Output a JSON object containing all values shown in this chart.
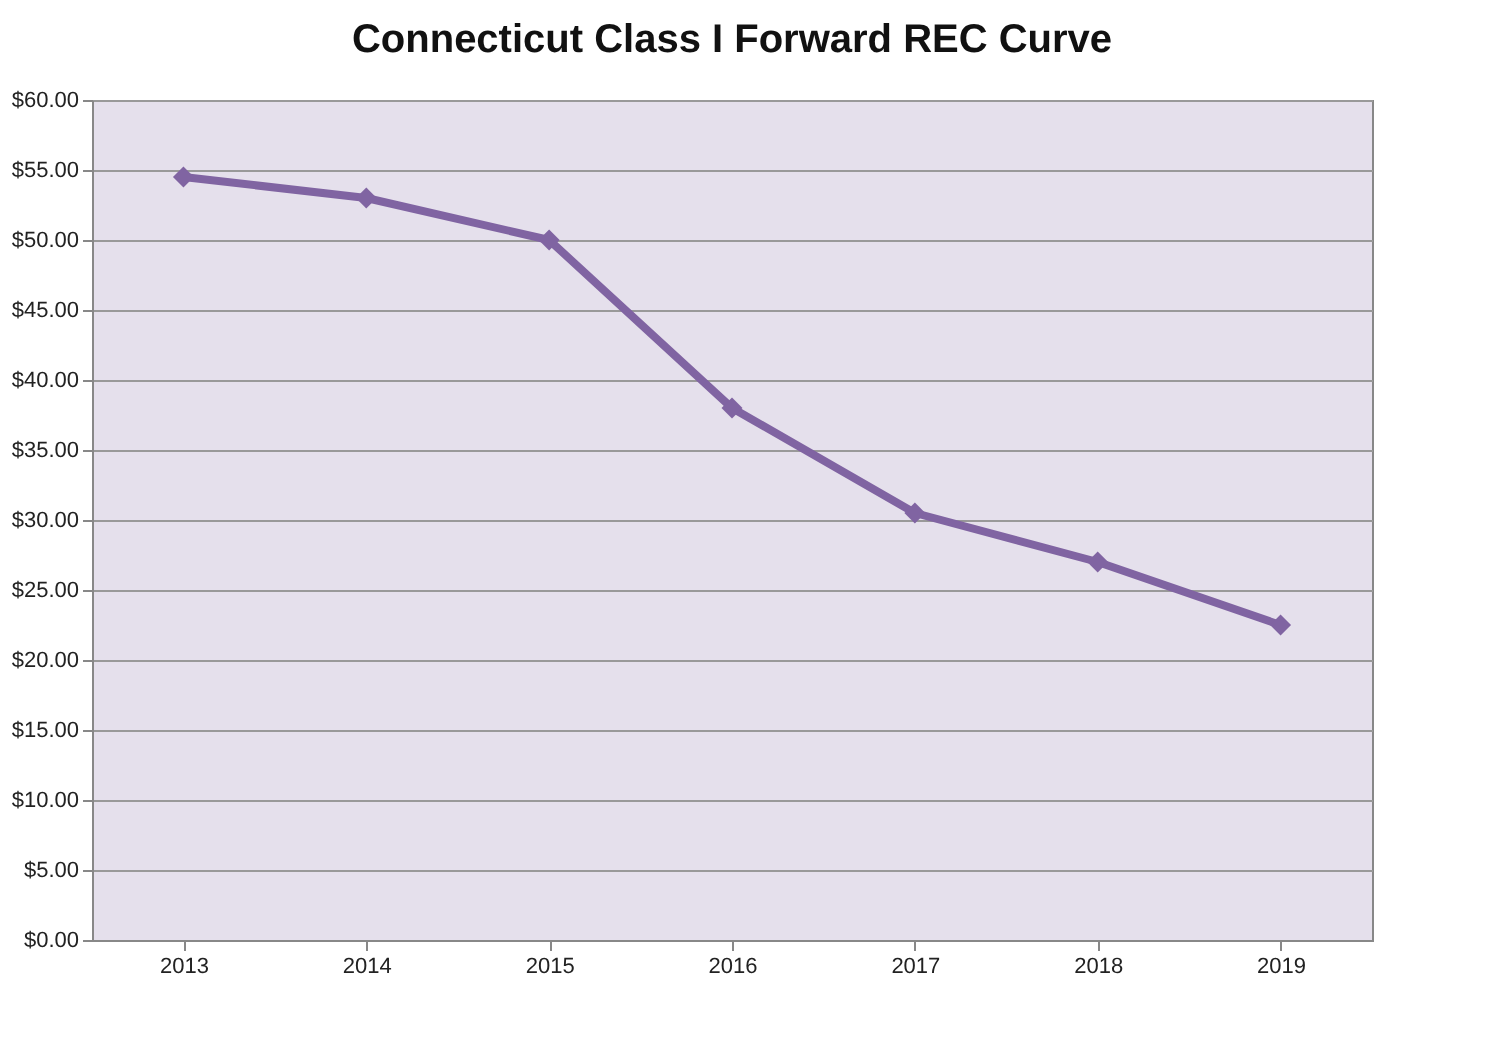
{
  "chart_data": {
    "type": "line",
    "title": "Connecticut Class I Forward REC Curve",
    "categories": [
      "2013",
      "2014",
      "2015",
      "2016",
      "2017",
      "2018",
      "2019"
    ],
    "series": [
      {
        "color": "#8064a2",
        "values": [
          54.5,
          53,
          50,
          38,
          30.5,
          27,
          22.5
        ]
      }
    ],
    "ylim": [
      0,
      60
    ],
    "yticks": [
      {
        "value": 0,
        "label": "$0.00"
      },
      {
        "value": 5,
        "label": "$5.00"
      },
      {
        "value": 10,
        "label": "$10.00"
      },
      {
        "value": 15,
        "label": "$15.00"
      },
      {
        "value": 20,
        "label": "$20.00"
      },
      {
        "value": 25,
        "label": "$25.00"
      },
      {
        "value": 30,
        "label": "$30.00"
      },
      {
        "value": 35,
        "label": "$35.00"
      },
      {
        "value": 40,
        "label": "$40.00"
      },
      {
        "value": 45,
        "label": "$45.00"
      },
      {
        "value": 50,
        "label": "$50.00"
      },
      {
        "value": 55,
        "label": "$55.00"
      },
      {
        "value": 60,
        "label": "$60.00"
      }
    ],
    "grid": "y",
    "marker": "diamond",
    "line_style": "solid"
  }
}
